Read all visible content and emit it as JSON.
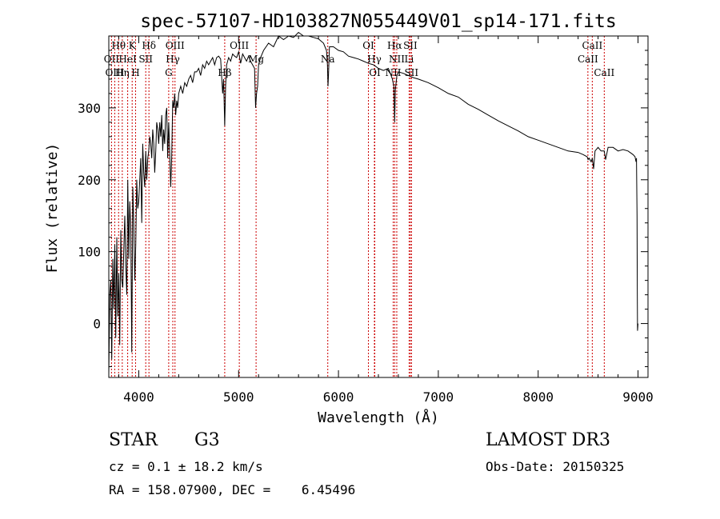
{
  "chart_data": {
    "type": "line",
    "title": "spec-57107-HD103827N055449V01_sp14-171.fits",
    "xlabel": "Wavelength (Å)",
    "ylabel": "Flux (relative)",
    "xlim": [
      3700,
      9100
    ],
    "ylim": [
      -75,
      400
    ],
    "xticks": [
      4000,
      5000,
      6000,
      7000,
      8000,
      9000
    ],
    "yticks": [
      0,
      100,
      200,
      300
    ],
    "grid": false,
    "line_color": "#000000",
    "marker_color": "#cc0000",
    "spectrum": {
      "x": [
        3700,
        3710,
        3720,
        3730,
        3740,
        3750,
        3760,
        3770,
        3780,
        3790,
        3800,
        3810,
        3820,
        3830,
        3840,
        3850,
        3860,
        3870,
        3880,
        3890,
        3900,
        3910,
        3920,
        3930,
        3940,
        3950,
        3960,
        3970,
        3980,
        3990,
        4000,
        4010,
        4020,
        4030,
        4040,
        4050,
        4060,
        4070,
        4080,
        4090,
        4100,
        4110,
        4120,
        4130,
        4140,
        4150,
        4160,
        4170,
        4180,
        4190,
        4200,
        4210,
        4220,
        4230,
        4240,
        4250,
        4260,
        4270,
        4280,
        4290,
        4300,
        4310,
        4320,
        4330,
        4340,
        4350,
        4360,
        4370,
        4380,
        4390,
        4400,
        4420,
        4440,
        4460,
        4480,
        4500,
        4520,
        4540,
        4560,
        4580,
        4600,
        4620,
        4640,
        4660,
        4680,
        4700,
        4720,
        4740,
        4760,
        4780,
        4800,
        4820,
        4840,
        4850,
        4861,
        4870,
        4880,
        4900,
        4920,
        4940,
        4960,
        4980,
        5000,
        5020,
        5040,
        5060,
        5080,
        5100,
        5120,
        5140,
        5160,
        5170,
        5180,
        5190,
        5200,
        5220,
        5250,
        5300,
        5350,
        5400,
        5450,
        5500,
        5550,
        5600,
        5650,
        5700,
        5750,
        5800,
        5850,
        5880,
        5890,
        5895,
        5900,
        5910,
        5950,
        6000,
        6050,
        6100,
        6150,
        6200,
        6250,
        6300,
        6350,
        6400,
        6450,
        6500,
        6540,
        6555,
        6563,
        6570,
        6585,
        6600,
        6650,
        6700,
        6750,
        6800,
        6900,
        7000,
        7100,
        7200,
        7300,
        7400,
        7500,
        7600,
        7700,
        7800,
        7900,
        8000,
        8100,
        8200,
        8300,
        8400,
        8450,
        8490,
        8500,
        8510,
        8530,
        8542,
        8555,
        8570,
        8600,
        8630,
        8650,
        8662,
        8675,
        8700,
        8750,
        8800,
        8850,
        8900,
        8950,
        8970,
        8980,
        8985,
        8990,
        8993,
        8995,
        9000
      ],
      "y": [
        -70,
        40,
        60,
        -50,
        90,
        20,
        110,
        -20,
        120,
        10,
        70,
        -30,
        130,
        60,
        50,
        100,
        150,
        80,
        40,
        200,
        90,
        170,
        130,
        -40,
        190,
        140,
        60,
        110,
        200,
        160,
        170,
        200,
        230,
        140,
        250,
        210,
        190,
        240,
        200,
        230,
        240,
        260,
        250,
        230,
        270,
        250,
        210,
        240,
        280,
        270,
        250,
        280,
        260,
        290,
        240,
        270,
        250,
        290,
        300,
        230,
        280,
        240,
        190,
        230,
        310,
        300,
        320,
        290,
        310,
        300,
        320,
        330,
        320,
        335,
        330,
        340,
        345,
        335,
        350,
        350,
        355,
        345,
        360,
        355,
        365,
        360,
        365,
        370,
        360,
        370,
        372,
        368,
        320,
        340,
        275,
        330,
        360,
        370,
        365,
        375,
        372,
        370,
        378,
        362,
        375,
        370,
        365,
        372,
        365,
        360,
        355,
        300,
        320,
        330,
        360,
        370,
        380,
        390,
        385,
        400,
        395,
        400,
        398,
        405,
        400,
        400,
        398,
        396,
        390,
        380,
        360,
        330,
        345,
        385,
        385,
        380,
        378,
        372,
        370,
        368,
        365,
        362,
        360,
        355,
        352,
        355,
        340,
        330,
        280,
        325,
        345,
        350,
        348,
        345,
        342,
        340,
        335,
        328,
        320,
        315,
        305,
        298,
        290,
        282,
        275,
        268,
        260,
        255,
        250,
        245,
        240,
        238,
        235,
        232,
        228,
        230,
        225,
        230,
        215,
        240,
        245,
        240,
        240,
        240,
        228,
        245,
        245,
        240,
        242,
        240,
        235,
        232,
        225,
        230,
        150,
        50,
        -10,
        0
      ]
    },
    "lines_top": [
      {
        "label": "Hθ",
        "wl": 3798
      },
      {
        "label": "K",
        "wl": 3934
      },
      {
        "label": "Hδ",
        "wl": 4102
      },
      {
        "label": "OIII",
        "wl": 4363
      },
      {
        "label": "OIII",
        "wl": 5007
      },
      {
        "label": "OI",
        "wl": 6300
      },
      {
        "label": "Hα",
        "wl": 6563
      },
      {
        "label": "SII",
        "wl": 6720
      },
      {
        "label": "CaII",
        "wl": 8542
      }
    ],
    "lines_mid": [
      {
        "label": "OII",
        "wl": 3727
      },
      {
        "label": "HeI",
        "wl": 3889
      },
      {
        "label": "SII",
        "wl": 4070
      },
      {
        "label": "Hγ",
        "wl": 4341
      },
      {
        "label": "Mg",
        "wl": 5175
      },
      {
        "label": "Na",
        "wl": 5893
      },
      {
        "label": "Hγ",
        "wl": 6360
      },
      {
        "label": "NII",
        "wl": 6584
      },
      {
        "label": "Li",
        "wl": 6708
      },
      {
        "label": "CaII",
        "wl": 8498
      }
    ],
    "lines_low": [
      {
        "label": "OIII",
        "wl": 3760
      },
      {
        "label": "Hη",
        "wl": 3835
      },
      {
        "label": "H",
        "wl": 3968
      },
      {
        "label": "G",
        "wl": 4300
      },
      {
        "label": "Hβ",
        "wl": 4861
      },
      {
        "label": "OI",
        "wl": 6364
      },
      {
        "label": "NII",
        "wl": 6548
      },
      {
        "label": "SII",
        "wl": 6731
      },
      {
        "label": "CaII",
        "wl": 8662
      }
    ]
  },
  "info": {
    "class_label": "STAR",
    "subclass": "G3",
    "survey": "LAMOST DR3",
    "cz_line": "cz = 0.1 ± 18.2 km/s",
    "obs_date": "Obs-Date: 20150325",
    "coords": "RA = 158.07900, DEC =    6.45496"
  }
}
